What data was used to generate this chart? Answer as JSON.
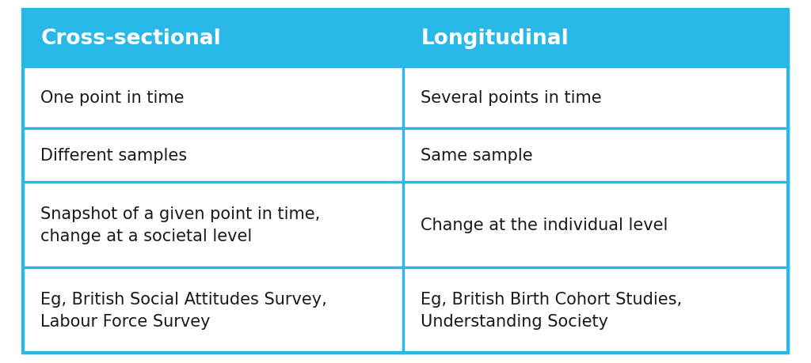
{
  "header_bg": "#29b8e8",
  "header_text_color": "#ffffff",
  "cell_bg": "#ffffff",
  "border_color": "#29b8e8",
  "fig_bg": "#ffffff",
  "text_color": "#1a1a1a",
  "col1_header": "Cross-sectional",
  "col2_header": "Longitudinal",
  "rows": [
    [
      "One point in time",
      "Several points in time"
    ],
    [
      "Different samples",
      "Same sample"
    ],
    [
      "Snapshot of a given point in time,\nchange at a societal level",
      "Change at the individual level"
    ],
    [
      "Eg, British Social Attitudes Survey,\nLabour Force Survey",
      "Eg, British Birth Cohort Studies,\nUnderstanding Society"
    ]
  ],
  "header_fontsize": 19,
  "cell_fontsize": 15,
  "fig_width": 10.24,
  "fig_height": 4.6
}
